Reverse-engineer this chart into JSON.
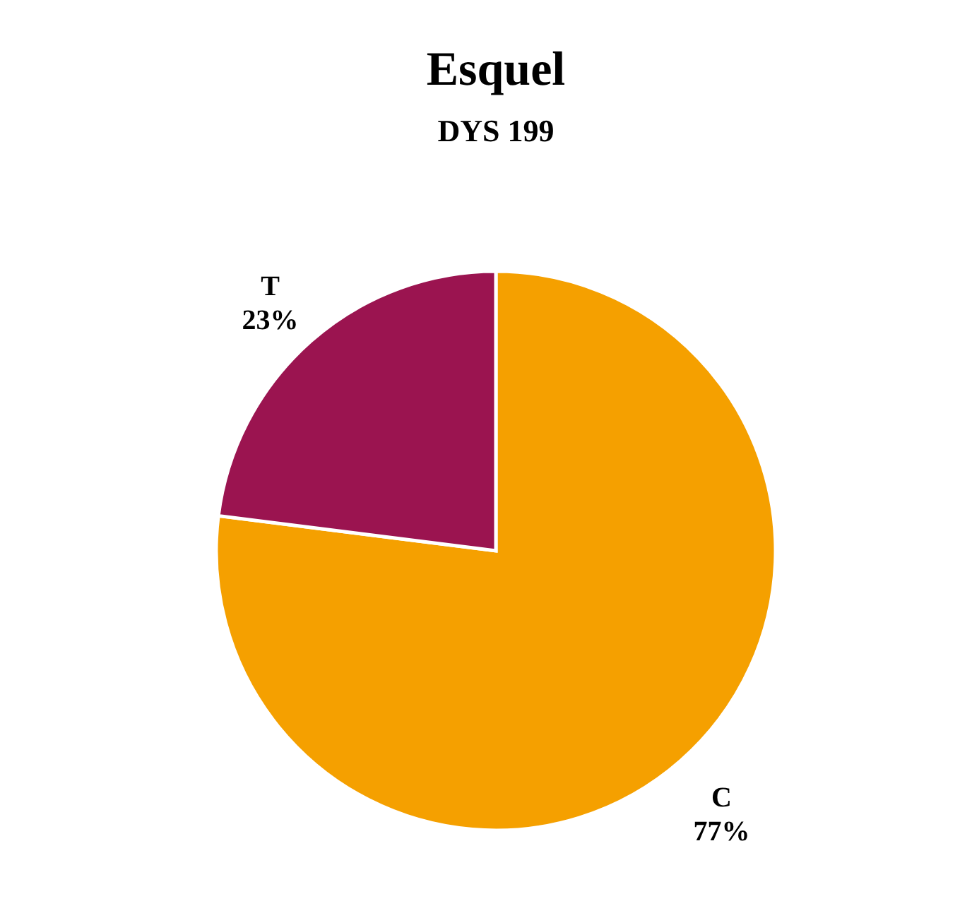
{
  "chart_data": {
    "type": "pie",
    "title": "Esquel",
    "subtitle": "DYS 199",
    "categories": [
      "C",
      "T"
    ],
    "values": [
      77,
      23
    ],
    "colors": [
      "#f5a000",
      "#9b1450"
    ],
    "value_labels": [
      "77%",
      "23%"
    ]
  }
}
